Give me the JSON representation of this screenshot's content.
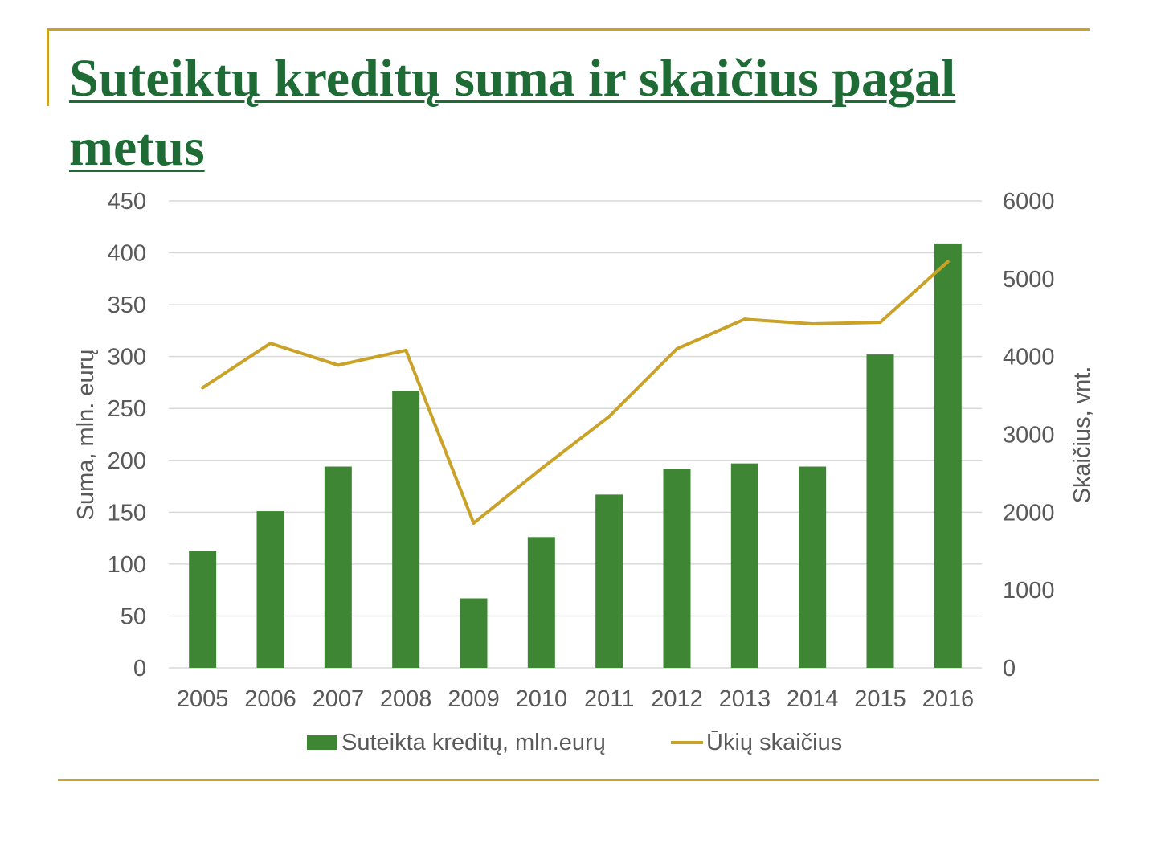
{
  "slide": {
    "title": "Suteiktų kreditų suma ir skaičius pagal metus"
  },
  "colors": {
    "accent_line": "#C9A227",
    "title": "#1E6B35",
    "bar": "#3E8534",
    "line": "#C9A227",
    "gridline": "#D9D9D9",
    "text": "#595959"
  },
  "chart_data": {
    "type": "bar",
    "categories": [
      "2005",
      "2006",
      "2007",
      "2008",
      "2009",
      "2010",
      "2011",
      "2012",
      "2013",
      "2014",
      "2015",
      "2016"
    ],
    "series": [
      {
        "name": "Suteikta kreditų, mln.eurų",
        "type": "bar",
        "axis": "left",
        "values": [
          113,
          151,
          194,
          267,
          67,
          126,
          167,
          192,
          197,
          194,
          302,
          409
        ]
      },
      {
        "name": "Ūkių skaičius",
        "type": "line",
        "axis": "right",
        "values": [
          3600,
          4170,
          3890,
          4080,
          1860,
          2560,
          3230,
          4100,
          4480,
          4420,
          4440,
          5220
        ]
      }
    ],
    "ylabel": "Suma, mln. eurų",
    "ylim": [
      0,
      450
    ],
    "yticks": [
      "0",
      "50",
      "100",
      "150",
      "200",
      "250",
      "300",
      "350",
      "400",
      "450"
    ],
    "y2label": "Skaičius, vnt.",
    "y2lim": [
      0,
      6000
    ],
    "y2ticks": [
      "0",
      "1000",
      "2000",
      "3000",
      "4000",
      "5000",
      "6000"
    ],
    "grid": true,
    "legend_position": "bottom"
  }
}
